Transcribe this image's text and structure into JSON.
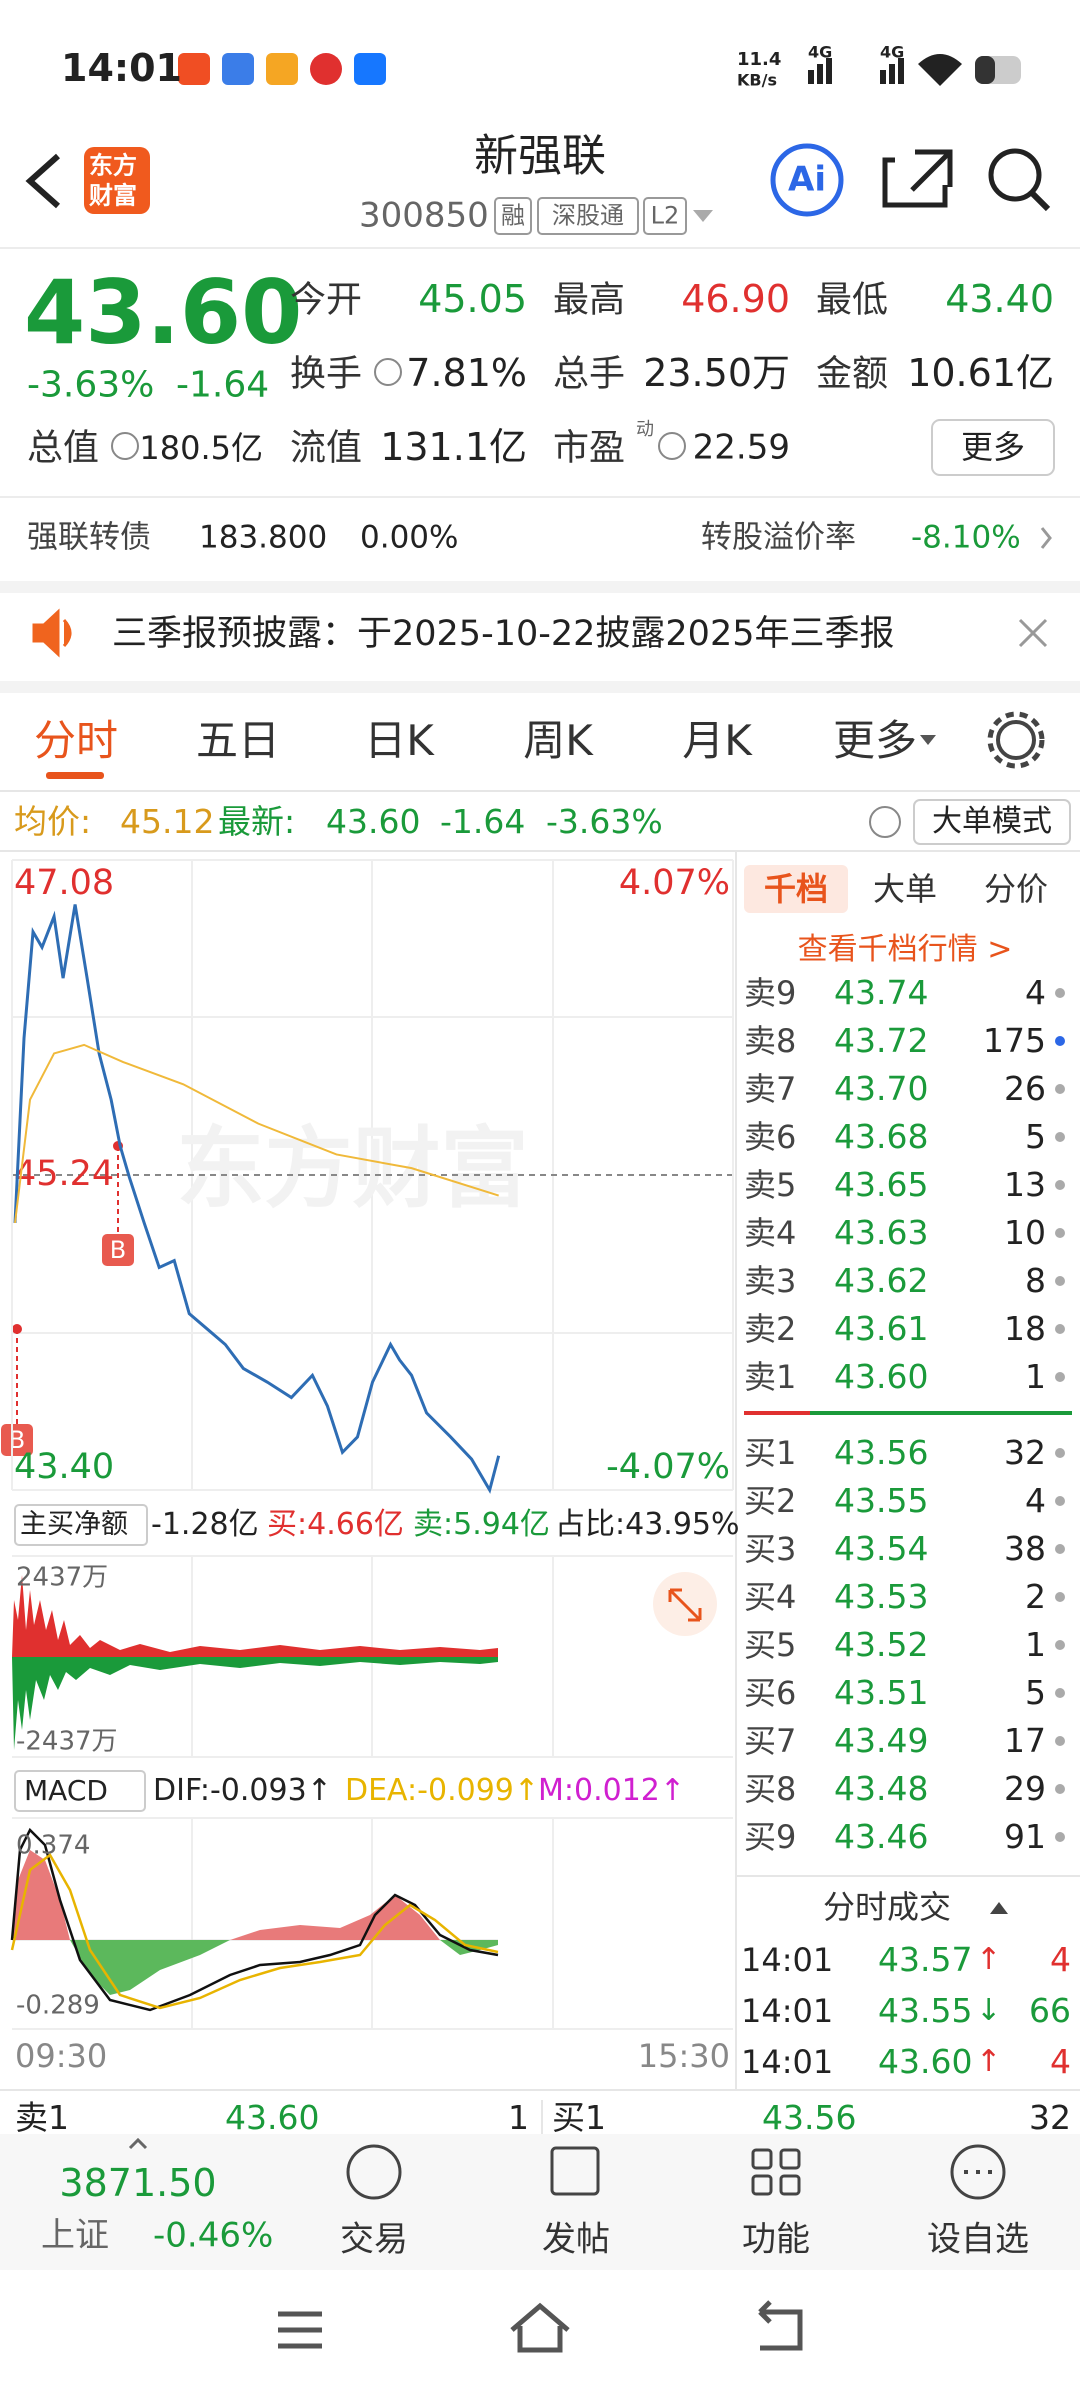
{
  "status_bar": {
    "time": "14:01",
    "net_speed": "11.4",
    "net_unit": "KB/s",
    "signal": [
      "4G",
      "4G"
    ]
  },
  "header": {
    "logo": [
      "东方",
      "财富"
    ],
    "title": "新强联",
    "code": "300850",
    "tags": [
      "融",
      "深股通",
      "L2"
    ],
    "ai": "Ai"
  },
  "quote": {
    "price": "43.60",
    "change_pct": "-3.63%",
    "change": "-1.64",
    "open_label": "今开",
    "open": "45.05",
    "high_label": "最高",
    "high": "46.90",
    "low_label": "最低",
    "low": "43.40",
    "turnover_label": "换手",
    "turnover": "7.81%",
    "volume_label": "总手",
    "volume": "23.50万",
    "amount_label": "金额",
    "amount": "10.61亿",
    "mktcap_label": "总值",
    "mktcap": "180.5亿",
    "float_label": "流值",
    "float": "131.1亿",
    "pe_label": "市盈",
    "pe_sup": "动",
    "pe": "22.59",
    "more": "更多"
  },
  "bond": {
    "name": "强联转债",
    "price": "183.800",
    "change": "0.00%",
    "premium_label": "转股溢价率",
    "premium": "-8.10%"
  },
  "notice": {
    "text": "三季报预披露：于2025-10-22披露2025年三季报"
  },
  "tabs": [
    "分时",
    "五日",
    "日K",
    "周K",
    "月K",
    "更多"
  ],
  "info": {
    "avg_label": "均价:",
    "avg": "45.12",
    "latest_label": "最新:",
    "latest": "43.60",
    "change": "-1.64",
    "change_pct": "-3.63%",
    "mode": "大单模式"
  },
  "chart_data": {
    "type": "line",
    "watermark": "东方财富",
    "xlim": [
      0,
      240
    ],
    "xticks": [
      {
        "value": 0,
        "label": "09:30"
      },
      {
        "value": 240,
        "label": "15:30"
      }
    ],
    "ylim": [
      43.4,
      47.08
    ],
    "yticks": [
      {
        "value": 43.4,
        "label": "43.40"
      },
      45.24,
      47.08
    ],
    "y2lim": [
      -4.07,
      4.07
    ],
    "y2ticks": [
      {
        "value": 4.07,
        "label": "4.07%"
      },
      {
        "value": -4.07,
        "label": "-4.07%"
      }
    ],
    "up_color": "#e0302f",
    "down_color": "#1a9a3a",
    "series": [
      {
        "color": "#2e6db4",
        "x": [
          1,
          4,
          7,
          10,
          14,
          17,
          21,
          25,
          29,
          33,
          36,
          39,
          44,
          49,
          54,
          59,
          65,
          71,
          77,
          85,
          93,
          100,
          105,
          110,
          115,
          120,
          126,
          129,
          133,
          138,
          146,
          153,
          159,
          162
        ],
        "values": [
          44.96,
          46.04,
          46.66,
          46.57,
          46.75,
          46.39,
          46.82,
          46.39,
          45.95,
          45.68,
          45.41,
          45.23,
          44.96,
          44.7,
          44.74,
          44.43,
          44.34,
          44.25,
          44.11,
          44.03,
          43.94,
          44.07,
          43.89,
          43.62,
          43.71,
          44.03,
          44.25,
          44.16,
          44.07,
          43.85,
          43.71,
          43.58,
          43.4,
          43.6
        ]
      },
      {
        "color": "#f0b93a",
        "x": [
          1,
          6,
          14,
          24,
          37,
          57,
          82,
          108,
          133,
          162
        ],
        "values": [
          44.96,
          45.68,
          45.95,
          46.0,
          45.9,
          45.77,
          45.54,
          45.36,
          45.28,
          45.12
        ]
      }
    ],
    "markers": [
      "B",
      "B"
    ]
  },
  "flow": {
    "label": "主买净额",
    "net": "-1.28亿",
    "buy": "买:4.66亿",
    "sell": "卖:5.94亿",
    "ratio": "占比:43.95%",
    "max": "2437万",
    "min": "-2437万"
  },
  "macd": {
    "label": "MACD",
    "dif": "DIF:-0.093↑",
    "dea": "DEA:-0.099↑",
    "m": "M:0.012↑",
    "max": "0.374",
    "min": "-0.289"
  },
  "order_book": {
    "tabs": [
      "千档",
      "大单",
      "分价"
    ],
    "link": "查看千档行情 >",
    "asks": [
      [
        "卖9",
        "43.74",
        "4"
      ],
      [
        "卖8",
        "43.72",
        "175"
      ],
      [
        "卖7",
        "43.70",
        "26"
      ],
      [
        "卖6",
        "43.68",
        "5"
      ],
      [
        "卖5",
        "43.65",
        "13"
      ],
      [
        "卖4",
        "43.63",
        "10"
      ],
      [
        "卖3",
        "43.62",
        "8"
      ],
      [
        "卖2",
        "43.61",
        "18"
      ],
      [
        "卖1",
        "43.60",
        "1"
      ]
    ],
    "bids": [
      [
        "买1",
        "43.56",
        "32"
      ],
      [
        "买2",
        "43.55",
        "4"
      ],
      [
        "买3",
        "43.54",
        "38"
      ],
      [
        "买4",
        "43.53",
        "2"
      ],
      [
        "买5",
        "43.52",
        "1"
      ],
      [
        "买6",
        "43.51",
        "5"
      ],
      [
        "买7",
        "43.49",
        "17"
      ],
      [
        "买8",
        "43.48",
        "29"
      ],
      [
        "买9",
        "43.46",
        "91"
      ]
    ]
  },
  "trades": {
    "title": "分时成交",
    "rows": [
      {
        "time": "14:01",
        "price": "43.57",
        "dir": "↑",
        "vol": "4"
      },
      {
        "time": "14:01",
        "price": "43.55",
        "dir": "↓",
        "vol": "66"
      },
      {
        "time": "14:01",
        "price": "43.60",
        "dir": "↑",
        "vol": "4"
      }
    ]
  },
  "bottom_bar": {
    "sell_label": "卖1",
    "sell_price": "43.60",
    "sell_vol": "1",
    "buy_label": "买1",
    "buy_price": "43.56",
    "buy_vol": "32"
  },
  "nav": {
    "index_value": "3871.50",
    "index_name": "上证",
    "index_change": "-0.46%",
    "items": [
      "交易",
      "发帖",
      "功能",
      "设自选"
    ]
  }
}
